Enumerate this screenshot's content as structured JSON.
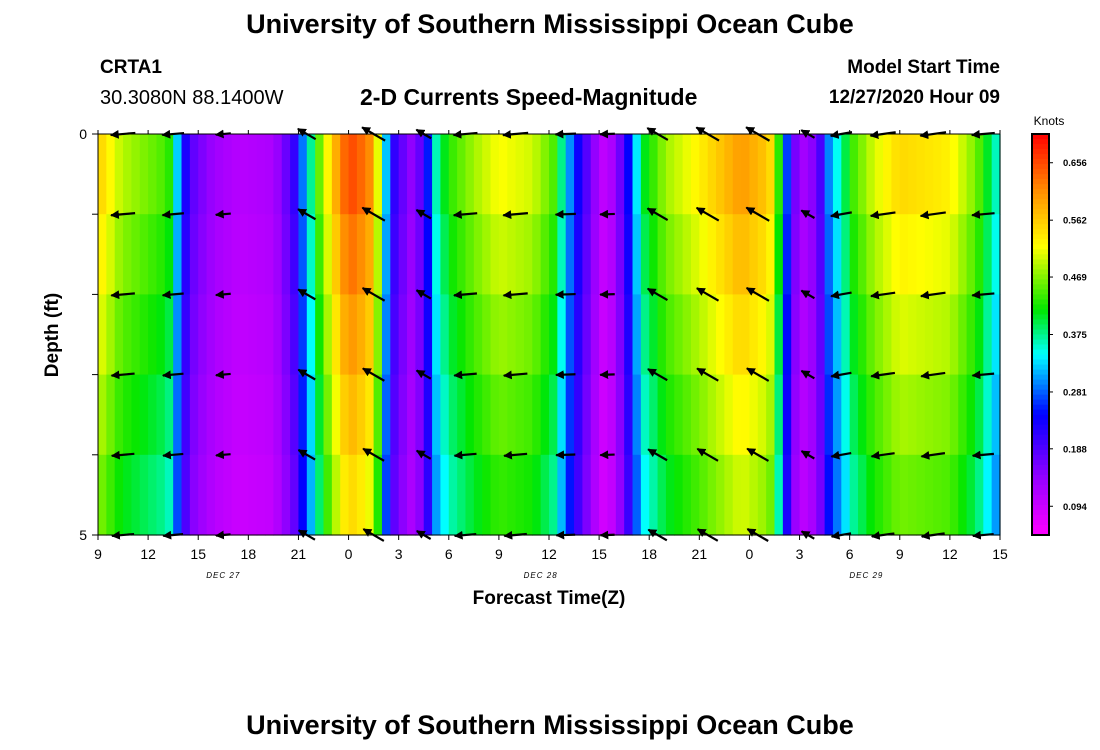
{
  "header": {
    "title": "University of Southern Mississippi Ocean Cube",
    "station": "CRTA1",
    "coordinates": "30.3080N 88.1400W",
    "chart_title": "2-D Currents Speed-Magnitude",
    "model_start_label": "Model Start Time",
    "model_start_value": "12/27/2020 Hour 09"
  },
  "footer": {
    "title": "University of Southern Mississippi Ocean Cube"
  },
  "chart_data": {
    "type": "heatmap",
    "title": "2-D Currents Speed-Magnitude",
    "xlabel": "Forecast Time(Z)",
    "ylabel": "Depth (ft)",
    "xlim": [
      0,
      54
    ],
    "ylim": [
      5,
      0
    ],
    "x_ticks": [
      {
        "h": 0,
        "label": "9"
      },
      {
        "h": 3,
        "label": "12"
      },
      {
        "h": 6,
        "label": "15"
      },
      {
        "h": 9,
        "label": "18"
      },
      {
        "h": 12,
        "label": "21"
      },
      {
        "h": 15,
        "label": "0"
      },
      {
        "h": 18,
        "label": "3"
      },
      {
        "h": 21,
        "label": "6"
      },
      {
        "h": 24,
        "label": "9"
      },
      {
        "h": 27,
        "label": "12"
      },
      {
        "h": 30,
        "label": "15"
      },
      {
        "h": 33,
        "label": "18"
      },
      {
        "h": 36,
        "label": "21"
      },
      {
        "h": 39,
        "label": "0"
      },
      {
        "h": 42,
        "label": "3"
      },
      {
        "h": 45,
        "label": "6"
      },
      {
        "h": 48,
        "label": "9"
      },
      {
        "h": 51,
        "label": "12"
      },
      {
        "h": 54,
        "label": "15"
      }
    ],
    "date_labels": [
      {
        "h": 7.5,
        "label": "DEC 27"
      },
      {
        "h": 26.5,
        "label": "DEC 28"
      },
      {
        "h": 46,
        "label": "DEC 29"
      }
    ],
    "y_ticks": [
      {
        "depth": 0,
        "label": "0"
      },
      {
        "depth": 1,
        "label": ""
      },
      {
        "depth": 2,
        "label": ""
      },
      {
        "depth": 3,
        "label": ""
      },
      {
        "depth": 4,
        "label": ""
      },
      {
        "depth": 5,
        "label": "5"
      }
    ],
    "depth_bins": 5,
    "speed_profile": [
      {
        "h": 0,
        "v": 0.56
      },
      {
        "h": 1.4,
        "v": 0.49
      },
      {
        "h": 4.2,
        "v": 0.44
      },
      {
        "h": 4.6,
        "v": 0.36
      },
      {
        "h": 5.1,
        "v": 0.24
      },
      {
        "h": 5.8,
        "v": 0.17
      },
      {
        "h": 7,
        "v": 0.13
      },
      {
        "h": 8.5,
        "v": 0.11
      },
      {
        "h": 10.5,
        "v": 0.12
      },
      {
        "h": 11.7,
        "v": 0.2
      },
      {
        "h": 12.5,
        "v": 0.33
      },
      {
        "h": 13.2,
        "v": 0.45
      },
      {
        "h": 14,
        "v": 0.56
      },
      {
        "h": 15,
        "v": 0.66
      },
      {
        "h": 16.2,
        "v": 0.62
      },
      {
        "h": 16.8,
        "v": 0.5
      },
      {
        "h": 17.3,
        "v": 0.3
      },
      {
        "h": 17.8,
        "v": 0.2
      },
      {
        "h": 18.8,
        "v": 0.14
      },
      {
        "h": 19.6,
        "v": 0.2
      },
      {
        "h": 20,
        "v": 0.34
      },
      {
        "h": 21,
        "v": 0.43
      },
      {
        "h": 22.5,
        "v": 0.48
      },
      {
        "h": 24,
        "v": 0.52
      },
      {
        "h": 26,
        "v": 0.5
      },
      {
        "h": 27.4,
        "v": 0.44
      },
      {
        "h": 28,
        "v": 0.33
      },
      {
        "h": 28.8,
        "v": 0.23
      },
      {
        "h": 29.6,
        "v": 0.15
      },
      {
        "h": 30.3,
        "v": 0.1
      },
      {
        "h": 31,
        "v": 0.13
      },
      {
        "h": 31.8,
        "v": 0.25
      },
      {
        "h": 32.6,
        "v": 0.4
      },
      {
        "h": 34,
        "v": 0.48
      },
      {
        "h": 36,
        "v": 0.53
      },
      {
        "h": 38.5,
        "v": 0.6
      },
      {
        "h": 40.2,
        "v": 0.56
      },
      {
        "h": 40.8,
        "v": 0.42
      },
      {
        "h": 41.3,
        "v": 0.25
      },
      {
        "h": 41.8,
        "v": 0.15
      },
      {
        "h": 42.4,
        "v": 0.12
      },
      {
        "h": 43.2,
        "v": 0.18
      },
      {
        "h": 43.6,
        "v": 0.28
      },
      {
        "h": 44.3,
        "v": 0.35
      },
      {
        "h": 45.2,
        "v": 0.44
      },
      {
        "h": 46.4,
        "v": 0.5
      },
      {
        "h": 48,
        "v": 0.55
      },
      {
        "h": 51,
        "v": 0.53
      },
      {
        "h": 52.6,
        "v": 0.46
      },
      {
        "h": 54,
        "v": 0.34
      }
    ],
    "depth_speed_factor": [
      1.0,
      0.96,
      0.92,
      0.88,
      0.84,
      0.8
    ],
    "arrow_times": [
      1.5,
      4.5,
      7.5,
      12.5,
      16.5,
      19.5,
      22,
      25,
      28,
      30.5,
      33.5,
      36.5,
      39.5,
      42.5,
      44.5,
      47,
      50,
      53
    ],
    "arrow_depths": [
      0,
      1,
      2,
      3,
      4,
      5
    ],
    "arrow_directions_deg": [
      265,
      265,
      265,
      300,
      300,
      300,
      265,
      265,
      268,
      268,
      300,
      300,
      300,
      300,
      260,
      262,
      262,
      265
    ],
    "unit": "Knots",
    "colorbar_ticks": [
      0.094,
      0.188,
      0.281,
      0.375,
      0.469,
      0.562,
      0.656
    ],
    "colorbar_range": [
      0.047,
      0.703
    ]
  }
}
